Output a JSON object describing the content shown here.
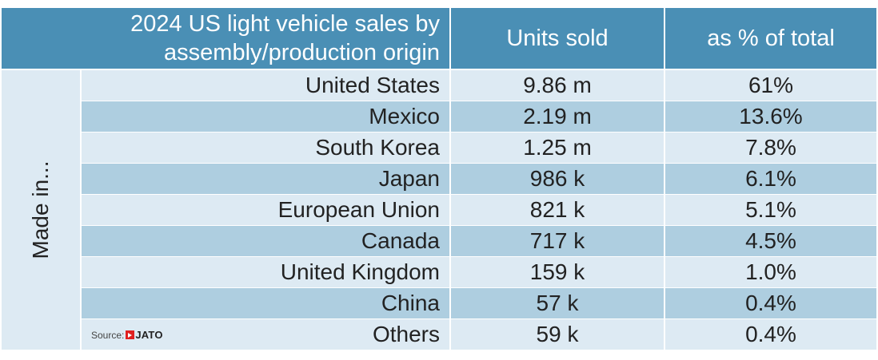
{
  "header": {
    "title_line1": "2024 US light vehicle sales by",
    "title_line2": "assembly/production origin",
    "col_units": "Units sold",
    "col_pct": "as % of total"
  },
  "side_label": "Made in...",
  "source": {
    "label": "Source:",
    "brand": "JATO"
  },
  "chart_data": {
    "type": "table",
    "title": "2024 US light vehicle sales by assembly/production origin",
    "columns": [
      "Units sold",
      "as % of total"
    ],
    "rows": [
      {
        "origin": "United States",
        "units": "9.86 m",
        "pct": "61%"
      },
      {
        "origin": "Mexico",
        "units": "2.19 m",
        "pct": "13.6%"
      },
      {
        "origin": "South Korea",
        "units": "1.25 m",
        "pct": "7.8%"
      },
      {
        "origin": "Japan",
        "units": "986 k",
        "pct": "6.1%"
      },
      {
        "origin": "European Union",
        "units": "821 k",
        "pct": "5.1%"
      },
      {
        "origin": "Canada",
        "units": "717 k",
        "pct": "4.5%"
      },
      {
        "origin": "United Kingdom",
        "units": "159 k",
        "pct": "1.0%"
      },
      {
        "origin": "China",
        "units": "57 k",
        "pct": "0.4%"
      },
      {
        "origin": "Others",
        "units": "59 k",
        "pct": "0.4%"
      }
    ]
  }
}
